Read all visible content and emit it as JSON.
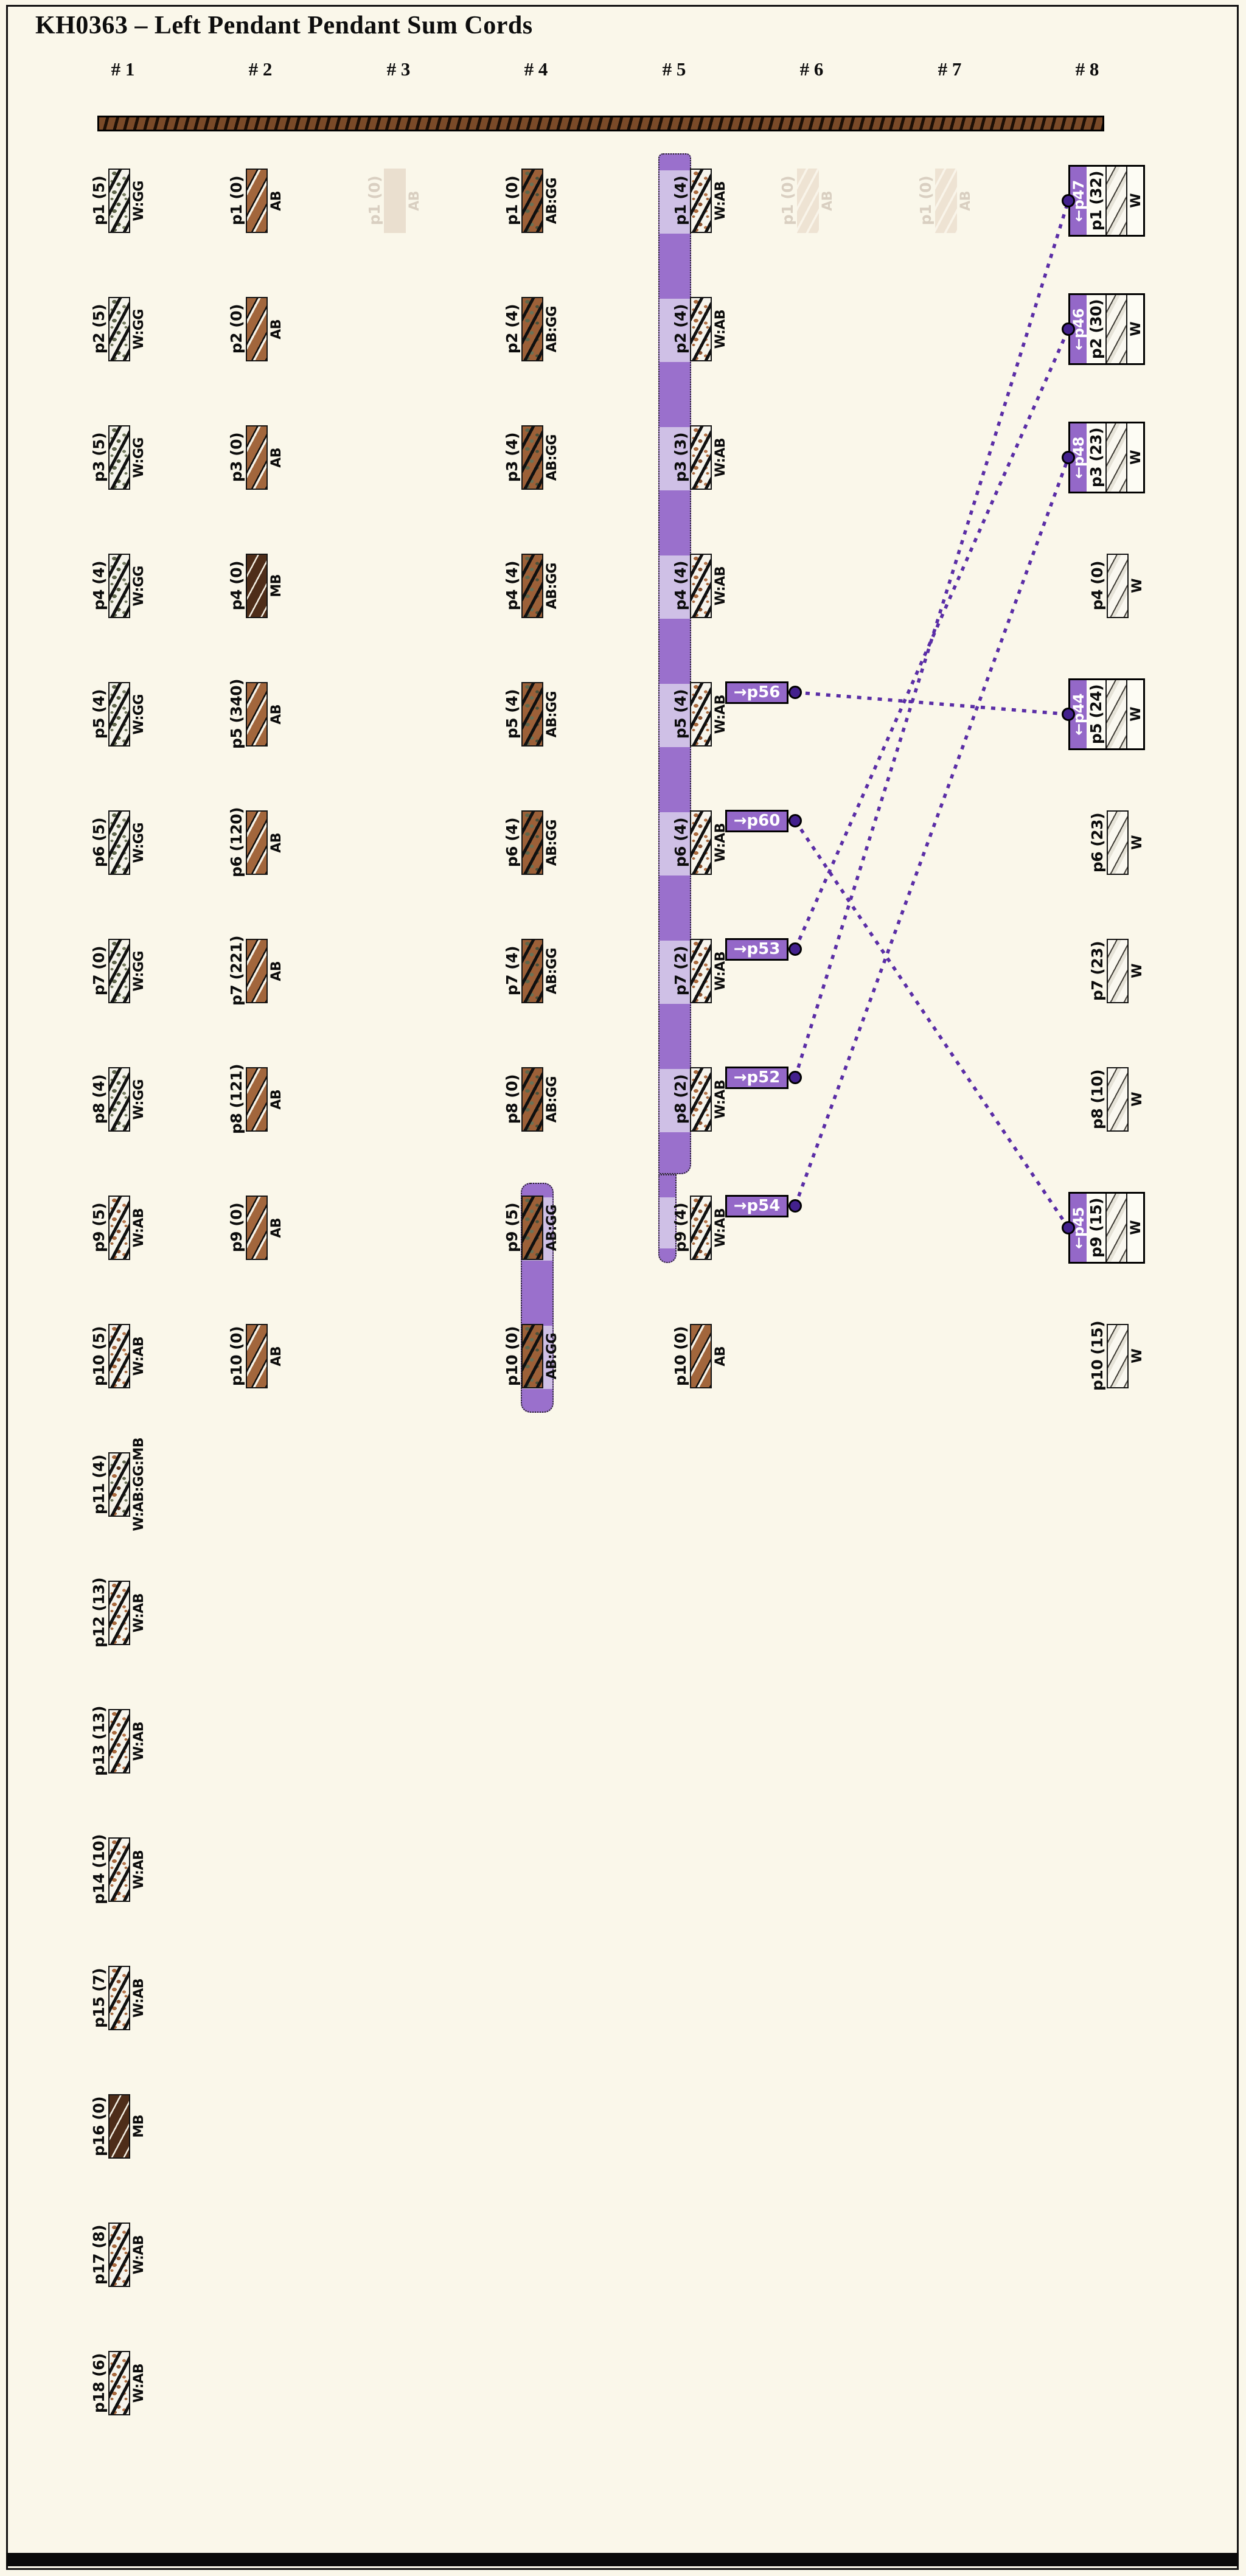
{
  "title": "KH0363 – Left Pendant Pendant Sum Cords",
  "columns": [
    "# 1",
    "# 2",
    "# 3",
    "# 4",
    "# 5",
    "# 6",
    "# 7",
    "# 8"
  ],
  "colors": {
    "background": "#faf7ea",
    "band_light": "#cfc0e6",
    "band_mid": "#9a70cc",
    "badge_fill": "#9468c8",
    "dot_fill": "#43218d",
    "connector_line": "#5a2da6",
    "cord_brown_AB": "#a2663c",
    "cord_dark_MB": "#4e2d19",
    "ghost": "#eadfcf"
  },
  "cells": [
    {
      "col": 1,
      "row": 1,
      "label": "p1 (5)",
      "code": "W:GG",
      "pattern": "w-gg"
    },
    {
      "col": 1,
      "row": 2,
      "label": "p2 (5)",
      "code": "W:GG",
      "pattern": "w-gg"
    },
    {
      "col": 1,
      "row": 3,
      "label": "p3 (5)",
      "code": "W:GG",
      "pattern": "w-gg"
    },
    {
      "col": 1,
      "row": 4,
      "label": "p4 (4)",
      "code": "W:GG",
      "pattern": "w-gg"
    },
    {
      "col": 1,
      "row": 5,
      "label": "p5 (4)",
      "code": "W:GG",
      "pattern": "w-gg"
    },
    {
      "col": 1,
      "row": 6,
      "label": "p6 (5)",
      "code": "W:GG",
      "pattern": "w-gg"
    },
    {
      "col": 1,
      "row": 7,
      "label": "p7 (0)",
      "code": "W:GG",
      "pattern": "w-gg"
    },
    {
      "col": 1,
      "row": 8,
      "label": "p8 (4)",
      "code": "W:GG",
      "pattern": "w-gg"
    },
    {
      "col": 1,
      "row": 9,
      "label": "p9 (5)",
      "code": "W:AB",
      "pattern": "w-ab"
    },
    {
      "col": 1,
      "row": 10,
      "label": "p10 (5)",
      "code": "W:AB",
      "pattern": "w-ab"
    },
    {
      "col": 1,
      "row": 11,
      "label": "p11 (4)",
      "code": "W:AB:GG:MB",
      "pattern": "w-ab-gg-mb"
    },
    {
      "col": 1,
      "row": 12,
      "label": "p12 (13)",
      "code": "W:AB",
      "pattern": "w-ab"
    },
    {
      "col": 1,
      "row": 13,
      "label": "p13 (13)",
      "code": "W:AB",
      "pattern": "w-ab"
    },
    {
      "col": 1,
      "row": 14,
      "label": "p14 (10)",
      "code": "W:AB",
      "pattern": "w-ab"
    },
    {
      "col": 1,
      "row": 15,
      "label": "p15 (7)",
      "code": "W:AB",
      "pattern": "w-ab"
    },
    {
      "col": 1,
      "row": 16,
      "label": "p16 (0)",
      "code": "MB",
      "pattern": "mb"
    },
    {
      "col": 1,
      "row": 17,
      "label": "p17 (8)",
      "code": "W:AB",
      "pattern": "w-ab"
    },
    {
      "col": 1,
      "row": 18,
      "label": "p18 (6)",
      "code": "W:AB",
      "pattern": "w-ab"
    },
    {
      "col": 2,
      "row": 1,
      "label": "p1 (0)",
      "code": "AB",
      "pattern": "ab"
    },
    {
      "col": 2,
      "row": 2,
      "label": "p2 (0)",
      "code": "AB",
      "pattern": "ab"
    },
    {
      "col": 2,
      "row": 3,
      "label": "p3 (0)",
      "code": "AB",
      "pattern": "ab"
    },
    {
      "col": 2,
      "row": 4,
      "label": "p4 (0)",
      "code": "MB",
      "pattern": "mb"
    },
    {
      "col": 2,
      "row": 5,
      "label": "p5 (340)",
      "code": "AB",
      "pattern": "ab"
    },
    {
      "col": 2,
      "row": 6,
      "label": "p6 (120)",
      "code": "AB",
      "pattern": "ab"
    },
    {
      "col": 2,
      "row": 7,
      "label": "p7 (221)",
      "code": "AB",
      "pattern": "ab"
    },
    {
      "col": 2,
      "row": 8,
      "label": "p8 (121)",
      "code": "AB",
      "pattern": "ab"
    },
    {
      "col": 2,
      "row": 9,
      "label": "p9 (0)",
      "code": "AB",
      "pattern": "ab"
    },
    {
      "col": 2,
      "row": 10,
      "label": "p10 (0)",
      "code": "AB",
      "pattern": "ab"
    },
    {
      "col": 3,
      "row": 1,
      "label": "p1 (0)",
      "code": "AB",
      "pattern": "ab-ghost",
      "ghost": true
    },
    {
      "col": 4,
      "row": 1,
      "label": "p1 (0)",
      "code": "AB:GG",
      "pattern": "ab-gg"
    },
    {
      "col": 4,
      "row": 2,
      "label": "p2 (4)",
      "code": "AB:GG",
      "pattern": "ab-gg"
    },
    {
      "col": 4,
      "row": 3,
      "label": "p3 (4)",
      "code": "AB:GG",
      "pattern": "ab-gg"
    },
    {
      "col": 4,
      "row": 4,
      "label": "p4 (4)",
      "code": "AB:GG",
      "pattern": "ab-gg"
    },
    {
      "col": 4,
      "row": 5,
      "label": "p5 (4)",
      "code": "AB:GG",
      "pattern": "ab-gg"
    },
    {
      "col": 4,
      "row": 6,
      "label": "p6 (4)",
      "code": "AB:GG",
      "pattern": "ab-gg"
    },
    {
      "col": 4,
      "row": 7,
      "label": "p7 (4)",
      "code": "AB:GG",
      "pattern": "ab-gg"
    },
    {
      "col": 4,
      "row": 8,
      "label": "p8 (0)",
      "code": "AB:GG",
      "pattern": "ab-gg"
    },
    {
      "col": 4,
      "row": 9,
      "label": "p9 (5)",
      "code": "AB:GG",
      "pattern": "ab-gg"
    },
    {
      "col": 4,
      "row": 10,
      "label": "p10 (0)",
      "code": "AB:GG",
      "pattern": "ab-gg"
    },
    {
      "col": 5,
      "row": 1,
      "label": "p1 (4)",
      "code": "W:AB",
      "pattern": "w-ab"
    },
    {
      "col": 5,
      "row": 2,
      "label": "p2 (4)",
      "code": "W:AB",
      "pattern": "w-ab"
    },
    {
      "col": 5,
      "row": 3,
      "label": "p3 (3)",
      "code": "W:AB",
      "pattern": "w-ab"
    },
    {
      "col": 5,
      "row": 4,
      "label": "p4 (4)",
      "code": "W:AB",
      "pattern": "w-ab"
    },
    {
      "col": 5,
      "row": 5,
      "label": "p5 (4)",
      "code": "W:AB",
      "pattern": "w-ab"
    },
    {
      "col": 5,
      "row": 6,
      "label": "p6 (4)",
      "code": "W:AB",
      "pattern": "w-ab"
    },
    {
      "col": 5,
      "row": 7,
      "label": "p7 (2)",
      "code": "W:AB",
      "pattern": "w-ab"
    },
    {
      "col": 5,
      "row": 8,
      "label": "p8 (2)",
      "code": "W:AB",
      "pattern": "w-ab"
    },
    {
      "col": 5,
      "row": 9,
      "label": "p9 (4)",
      "code": "W:AB",
      "pattern": "w-ab"
    },
    {
      "col": 5,
      "row": 10,
      "label": "p10 (0)",
      "code": "AB",
      "pattern": "ab"
    },
    {
      "col": 6,
      "row": 1,
      "label": "p1 (0)",
      "code": "AB",
      "pattern": "ab-ghost-stripe",
      "ghost": true
    },
    {
      "col": 7,
      "row": 1,
      "label": "p1 (0)",
      "code": "AB",
      "pattern": "ab-ghost-stripe",
      "ghost": true
    },
    {
      "col": 8,
      "row": 1,
      "label": "p1 (32)",
      "code": "W",
      "pattern": "w",
      "boxed": true,
      "tag": "←p47"
    },
    {
      "col": 8,
      "row": 2,
      "label": "p2 (30)",
      "code": "W",
      "pattern": "w",
      "boxed": true,
      "tag": "←p46"
    },
    {
      "col": 8,
      "row": 3,
      "label": "p3 (23)",
      "code": "W",
      "pattern": "w",
      "boxed": true,
      "tag": "←p48"
    },
    {
      "col": 8,
      "row": 4,
      "label": "p4 (0)",
      "code": "W",
      "pattern": "w"
    },
    {
      "col": 8,
      "row": 5,
      "label": "p5 (24)",
      "code": "W",
      "pattern": "w",
      "boxed": true,
      "tag": "←p44"
    },
    {
      "col": 8,
      "row": 6,
      "label": "p6 (23)",
      "code": "W",
      "pattern": "w"
    },
    {
      "col": 8,
      "row": 7,
      "label": "p7 (23)",
      "code": "W",
      "pattern": "w"
    },
    {
      "col": 8,
      "row": 8,
      "label": "p8 (10)",
      "code": "W",
      "pattern": "w"
    },
    {
      "col": 8,
      "row": 9,
      "label": "p9 (15)",
      "code": "W",
      "pattern": "w",
      "boxed": true,
      "tag": "←p45"
    },
    {
      "col": 8,
      "row": 10,
      "label": "p10 (15)",
      "code": "W",
      "pattern": "w"
    }
  ],
  "badges": [
    {
      "row": 5,
      "label": "→p56"
    },
    {
      "row": 6,
      "label": "→p60"
    },
    {
      "row": 7,
      "label": "→p53"
    },
    {
      "row": 8,
      "label": "→p52"
    },
    {
      "row": 9,
      "label": "→p54"
    }
  ],
  "connections": [
    {
      "from": "p56",
      "to": "p44",
      "badge_row": 5,
      "box_row": 5
    },
    {
      "from": "p60",
      "to": "p45",
      "badge_row": 6,
      "box_row": 9
    },
    {
      "from": "p53",
      "to": "p46",
      "badge_row": 7,
      "box_row": 2
    },
    {
      "from": "p52",
      "to": "p47",
      "badge_row": 8,
      "box_row": 1
    },
    {
      "from": "p54",
      "to": "p48",
      "badge_row": 9,
      "box_row": 3
    }
  ],
  "bands": [
    {
      "col": 5,
      "row_start": 1,
      "row_end": 9
    },
    {
      "col": 4,
      "row_start": 9,
      "row_end": 10
    }
  ]
}
